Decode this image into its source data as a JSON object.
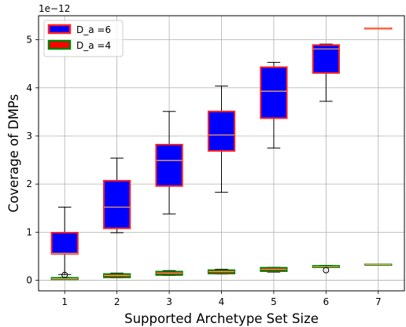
{
  "chart_data": {
    "type": "box",
    "xlabel": "Supported Archetype Set Size",
    "ylabel": "Coverage of DMPs",
    "y_offset_label": "1e−12",
    "categories": [
      "1",
      "2",
      "3",
      "4",
      "5",
      "6",
      "7"
    ],
    "xlim": [
      0.5,
      7.5
    ],
    "ylim": [
      -0.22,
      5.5
    ],
    "yticks": [
      "0",
      "1",
      "2",
      "3",
      "4",
      "5"
    ],
    "grid": true,
    "legend_position": "upper-left",
    "series": [
      {
        "name": "D_a =6",
        "face_color": "#0000ff",
        "edge_color": "#ff2020",
        "median_color": "#f5a15a",
        "boxes": [
          {
            "whislo": 0.12,
            "q1": 0.55,
            "med": 0.56,
            "q3": 0.99,
            "whishi": 1.52,
            "fliers": []
          },
          {
            "whislo": 0.99,
            "q1": 1.08,
            "med": 1.52,
            "q3": 2.07,
            "whishi": 2.54,
            "fliers": []
          },
          {
            "whislo": 1.38,
            "q1": 1.96,
            "med": 2.49,
            "q3": 2.82,
            "whishi": 3.51,
            "fliers": []
          },
          {
            "whislo": 1.83,
            "q1": 2.69,
            "med": 3.02,
            "q3": 3.51,
            "whishi": 4.04,
            "fliers": []
          },
          {
            "whislo": 2.75,
            "q1": 3.37,
            "med": 3.93,
            "q3": 4.43,
            "whishi": 4.53,
            "fliers": []
          },
          {
            "whislo": 3.72,
            "q1": 4.31,
            "med": 4.81,
            "q3": 4.89,
            "whishi": 4.91,
            "fliers": []
          },
          {
            "whislo": 5.24,
            "q1": 5.24,
            "med": 5.24,
            "q3": 5.24,
            "whishi": 5.24,
            "fliers": []
          }
        ]
      },
      {
        "name": "D_a =4",
        "face_color": "#ff0000",
        "edge_color": "#008000",
        "median_color": "#f5a15a",
        "boxes": [
          {
            "whislo": 0.02,
            "q1": 0.02,
            "med": 0.03,
            "q3": 0.05,
            "whishi": 0.06,
            "fliers": [
              0.11
            ]
          },
          {
            "whislo": 0.05,
            "q1": 0.06,
            "med": 0.1,
            "q3": 0.13,
            "whishi": 0.15,
            "fliers": []
          },
          {
            "whislo": 0.1,
            "q1": 0.11,
            "med": 0.15,
            "q3": 0.18,
            "whishi": 0.2,
            "fliers": []
          },
          {
            "whislo": 0.13,
            "q1": 0.14,
            "med": 0.18,
            "q3": 0.21,
            "whishi": 0.23,
            "fliers": []
          },
          {
            "whislo": 0.17,
            "q1": 0.19,
            "med": 0.23,
            "q3": 0.26,
            "whishi": 0.27,
            "fliers": []
          },
          {
            "whislo": 0.27,
            "q1": 0.27,
            "med": 0.28,
            "q3": 0.3,
            "whishi": 0.31,
            "fliers": [
              0.21
            ]
          },
          {
            "whislo": 0.32,
            "q1": 0.32,
            "med": 0.33,
            "q3": 0.33,
            "whishi": 0.33,
            "fliers": []
          }
        ]
      }
    ]
  }
}
